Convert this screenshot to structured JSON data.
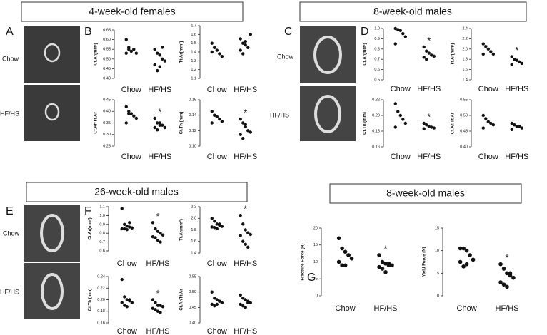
{
  "figure": {
    "headers": [
      "4-week-old females",
      "8-week-old males",
      "26-week-old males",
      "8-week-old males"
    ],
    "letters": [
      "A",
      "B",
      "C",
      "D",
      "E",
      "F",
      "G"
    ],
    "image_labels": [
      [
        "Chow",
        "HF/HS"
      ],
      [
        "Chow",
        "HF/HS"
      ],
      [
        "Chow",
        "HF/HS"
      ]
    ]
  },
  "chart_data": [
    {
      "type": "dot",
      "ylabel": "Ct.Ar(mm²)",
      "categories": [
        "Chow",
        "HF/HS"
      ],
      "values": [
        [
          0.6,
          0.55,
          0.54,
          0.55,
          0.53,
          0.53,
          0.56
        ],
        [
          0.55,
          0.53,
          0.52,
          0.5,
          0.49,
          0.47,
          0.44,
          0.46,
          0.56
        ]
      ],
      "ylim": [
        0.4,
        0.65
      ],
      "yticks": [
        {
          "value": 0.4,
          "label": "0.40"
        },
        0.45,
        {
          "value": 0.5,
          "label": "0.50"
        },
        0.55,
        {
          "value": 0.6,
          "label": "0.60"
        },
        0.65
      ]
    },
    {
      "type": "dot",
      "ylabel": "Tt.Ar(mm²)",
      "categories": [
        "Chow",
        "HF/HS"
      ],
      "values": [
        [
          1.4,
          1.45,
          1.42,
          1.38,
          1.35,
          1.5,
          1.45
        ],
        [
          1.55,
          1.5,
          1.48,
          1.45,
          1.6,
          1.42,
          1.38,
          1.52
        ]
      ],
      "ylim": [
        1.1,
        1.7
      ],
      "yticks": [
        1.1,
        1.2,
        1.3,
        1.4,
        1.5,
        1.6,
        1.7
      ]
    },
    {
      "type": "dot",
      "ylabel": "Ct.Ar/Tt.Ar",
      "categories": [
        "Chow",
        "HF/HS"
      ],
      "values": [
        [
          0.42,
          0.4,
          0.39,
          0.38,
          0.37,
          0.35,
          0.39
        ],
        [
          0.37,
          0.35,
          0.34,
          0.34,
          0.33,
          0.33,
          0.32,
          0.35
        ]
      ],
      "annotations": [
        null,
        "*"
      ],
      "ylim": [
        0.25,
        0.45
      ],
      "yticks": [
        0.25,
        {
          "value": 0.3,
          "label": "0.30"
        },
        0.35,
        {
          "value": 0.4,
          "label": "0.40"
        },
        0.45
      ]
    },
    {
      "type": "dot",
      "ylabel": "Ct.Th (mm)",
      "categories": [
        "Chow",
        "HF/HS"
      ],
      "values": [
        [
          0.145,
          0.14,
          0.138,
          0.135,
          0.132,
          0.13,
          0.14
        ],
        [
          0.135,
          0.13,
          0.125,
          0.12,
          0.118,
          0.115,
          0.11,
          0.128
        ]
      ],
      "annotations": [
        null,
        "*"
      ],
      "ylim": [
        0.1,
        0.16
      ],
      "yticks": [
        {
          "value": 0.1,
          "label": "0.10"
        },
        0.12,
        0.14,
        0.16
      ]
    },
    {
      "type": "dot",
      "ylabel": "Ct.Ar(mm²)",
      "categories": [
        "Chow",
        "HF/HS"
      ],
      "values": [
        [
          1.0,
          0.99,
          0.98,
          0.95,
          0.92,
          0.85
        ],
        [
          0.82,
          0.78,
          0.76,
          0.74,
          0.73,
          0.72,
          0.7
        ]
      ],
      "annotations": [
        null,
        "*"
      ],
      "ylim": [
        0.5,
        1.0
      ],
      "yticks": [
        0.5,
        0.6,
        0.7,
        0.8,
        0.9,
        {
          "value": 1,
          "label": "1.0"
        }
      ]
    },
    {
      "type": "dot",
      "ylabel": "Tt.Ar(mm²)",
      "categories": [
        "Chow",
        "HF/HS"
      ],
      "values": [
        [
          2.1,
          2.05,
          2.0,
          1.95,
          1.9,
          1.9
        ],
        [
          1.85,
          1.8,
          1.78,
          1.75,
          1.72,
          1.7
        ]
      ],
      "annotations": [
        null,
        "*"
      ],
      "ylim": [
        1.4,
        2.4
      ],
      "yticks": [
        1.4,
        1.6,
        1.8,
        {
          "value": 2,
          "label": "2.0"
        },
        2.2,
        2.4
      ]
    },
    {
      "type": "dot",
      "ylabel": "Ct.Th (mm)",
      "categories": [
        "Chow",
        "HF/HS"
      ],
      "values": [
        [
          0.215,
          0.205,
          0.2,
          0.195,
          0.19,
          0.185
        ],
        [
          0.19,
          0.188,
          0.186,
          0.185,
          0.184,
          0.183
        ]
      ],
      "annotations": [
        null,
        "*"
      ],
      "ylim": [
        0.16,
        0.22
      ],
      "yticks": [
        0.16,
        0.18,
        {
          "value": 0.2,
          "label": "0.20"
        },
        0.22
      ]
    },
    {
      "type": "dot",
      "ylabel": "Ct.Ar/Tt.Ar",
      "categories": [
        "Chow",
        "HF/HS"
      ],
      "values": [
        [
          0.5,
          0.49,
          0.48,
          0.475,
          0.47,
          0.46
        ],
        [
          0.475,
          0.47,
          0.465,
          0.465,
          0.46,
          0.455
        ]
      ],
      "ylim": [
        0.4,
        0.55
      ],
      "yticks": [
        {
          "value": 0.4,
          "label": "0.40"
        },
        0.45,
        {
          "value": 0.5,
          "label": "0.50"
        },
        0.55
      ]
    },
    {
      "type": "dot",
      "ylabel": "Ct.Ar(mm²)",
      "categories": [
        "Chow",
        "HF/HS"
      ],
      "values": [
        [
          1.08,
          0.9,
          0.88,
          0.87,
          0.86,
          0.85,
          0.85,
          0.84,
          0.92
        ],
        [
          0.92,
          0.85,
          0.82,
          0.8,
          0.78,
          0.76,
          0.75,
          0.72,
          0.7
        ]
      ],
      "annotations": [
        null,
        "*"
      ],
      "ylim": [
        0.6,
        1.1
      ],
      "yticks": [
        0.6,
        0.7,
        0.8,
        0.9,
        {
          "value": 1,
          "label": "1.0"
        },
        1.1
      ]
    },
    {
      "type": "dot",
      "ylabel": "Tt.Ar(mm²)",
      "categories": [
        "Chow",
        "HF/HS"
      ],
      "values": [
        [
          2.0,
          1.95,
          1.9,
          1.88,
          1.86,
          1.85,
          1.84,
          1.82,
          1.9
        ],
        [
          2.05,
          1.9,
          1.8,
          1.75,
          1.72,
          1.7,
          1.6,
          1.55,
          1.5
        ]
      ],
      "annotations": [
        null,
        "*"
      ],
      "ylim": [
        1.4,
        2.2
      ],
      "yticks": [
        1.4,
        1.6,
        1.8,
        {
          "value": 2,
          "label": "2.0"
        },
        2.2
      ]
    },
    {
      "type": "dot",
      "ylabel": "Ct.Th (mm)",
      "categories": [
        "Chow",
        "HF/HS"
      ],
      "values": [
        [
          0.235,
          0.205,
          0.2,
          0.198,
          0.195,
          0.195,
          0.19,
          0.188,
          0.2
        ],
        [
          0.2,
          0.195,
          0.19,
          0.19,
          0.188,
          0.185,
          0.183,
          0.18,
          0.178
        ]
      ],
      "annotations": [
        null,
        "*"
      ],
      "ylim": [
        0.16,
        0.24
      ],
      "yticks": [
        0.16,
        0.18,
        {
          "value": 0.2,
          "label": "0.20"
        },
        0.22,
        0.24
      ]
    },
    {
      "type": "dot",
      "ylabel": "Ct.Ar/Tt.Ar",
      "categories": [
        "Chow",
        "HF/HS"
      ],
      "values": [
        [
          0.5,
          0.48,
          0.475,
          0.47,
          0.465,
          0.46,
          0.455,
          0.46,
          0.47
        ],
        [
          0.49,
          0.48,
          0.475,
          0.47,
          0.465,
          0.46,
          0.455,
          0.45,
          0.465
        ]
      ],
      "ylim": [
        0.4,
        0.55
      ],
      "yticks": [
        {
          "value": 0.4,
          "label": "0.40"
        },
        0.45,
        {
          "value": 0.5,
          "label": "0.50"
        },
        0.55
      ]
    },
    {
      "type": "dot",
      "ylabel": "Fracture Force (N)",
      "categories": [
        "Chow",
        "HF/HS"
      ],
      "values": [
        [
          17,
          14,
          13,
          12,
          11,
          10,
          9,
          9,
          12
        ],
        [
          12,
          10,
          9.5,
          9,
          9,
          8.5,
          8,
          7,
          9.5
        ]
      ],
      "annotations": [
        null,
        "*"
      ],
      "ylim": [
        0,
        20
      ],
      "yticks": [
        0,
        5,
        10,
        15,
        20
      ]
    },
    {
      "type": "dot",
      "ylabel": "Yield Force (N)",
      "categories": [
        "Chow",
        "HF/HS"
      ],
      "values": [
        [
          10.5,
          10.5,
          10,
          9,
          8,
          7.5,
          6.5,
          7
        ],
        [
          7,
          6,
          5,
          4.5,
          4,
          3,
          2.5,
          2,
          5
        ]
      ],
      "annotations": [
        null,
        "*"
      ],
      "ylim": [
        0,
        15
      ],
      "yticks": [
        0,
        5,
        10,
        15
      ]
    }
  ]
}
